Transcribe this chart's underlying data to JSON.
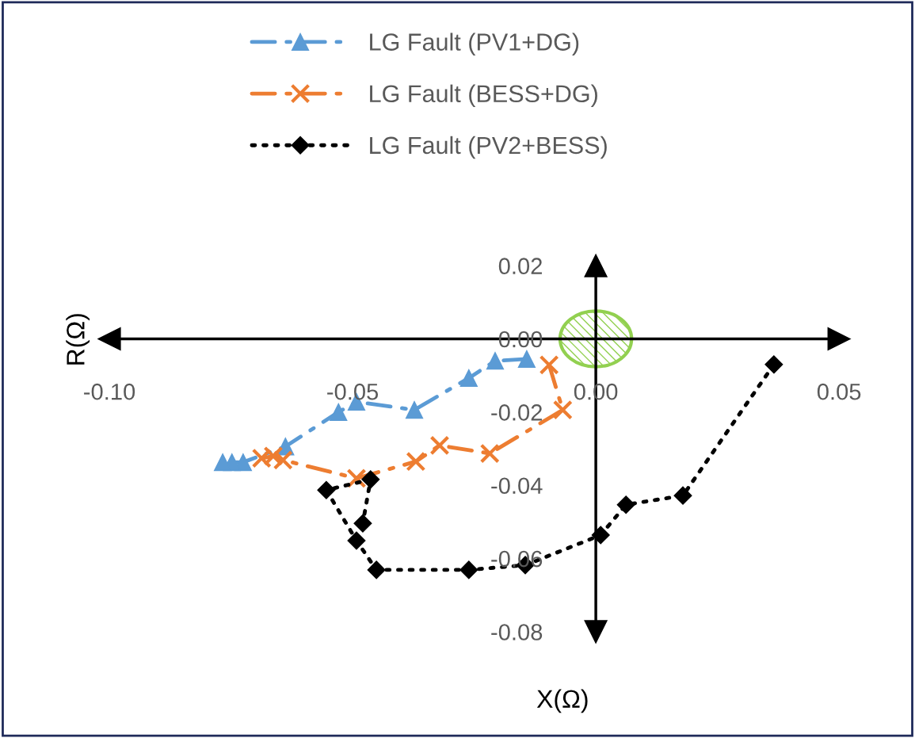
{
  "chart_data": {
    "type": "line",
    "xlabel": "X(Ω)",
    "ylabel": "R(Ω)",
    "xlim": [
      -0.1,
      0.05
    ],
    "xticks": [
      {
        "value": -0.1,
        "label": "-0.10"
      },
      {
        "value": -0.05,
        "label": "-0.05"
      },
      {
        "value": 0,
        "label": "0.00"
      },
      {
        "value": 0.05,
        "label": "0.05"
      }
    ],
    "ylim": [
      -0.08,
      0.02
    ],
    "yticks": [
      {
        "value": -0.08,
        "label": "-0.08"
      },
      {
        "value": -0.06,
        "label": "-0.06"
      },
      {
        "value": -0.04,
        "label": "-0.04"
      },
      {
        "value": -0.02,
        "label": "-0.02"
      },
      {
        "value": 0,
        "label": "0.00"
      },
      {
        "value": 0.02,
        "label": "0.02"
      }
    ],
    "grid": false,
    "legend": "top",
    "series": [
      {
        "name": "LG Fault (PV1+DG)",
        "color": "#5b9bd5",
        "marker": "triangle",
        "line_style": "dashed",
        "x": [
          -0.0142,
          -0.0207,
          -0.0261,
          -0.0373,
          -0.0492,
          -0.0529,
          -0.0638,
          -0.0725,
          -0.0748,
          -0.0767
        ],
        "values": [
          -0.0055,
          -0.006,
          -0.0107,
          -0.0194,
          -0.0172,
          -0.02,
          -0.0294,
          -0.0337,
          -0.0337,
          -0.0337
        ]
      },
      {
        "name": "LG Fault (BESS+DG)",
        "color": "#ed7d31",
        "marker": "cross",
        "line_style": "dashed",
        "x": [
          -0.0096,
          -0.0068,
          -0.0218,
          -0.0321,
          -0.037,
          -0.0492,
          -0.0643,
          -0.0663,
          -0.0687
        ],
        "values": [
          -0.0071,
          -0.0194,
          -0.0313,
          -0.0291,
          -0.0335,
          -0.0381,
          -0.0331,
          -0.032,
          -0.0326
        ]
      },
      {
        "name": "LG Fault (PV2+BESS)",
        "color": "#000000",
        "marker": "diamond",
        "line_style": "dotted",
        "x": [
          0.0366,
          0.0179,
          0.0062,
          0.001,
          -0.0145,
          -0.0261,
          -0.0451,
          -0.0492,
          -0.0554,
          -0.0463,
          -0.0479
        ],
        "values": [
          -0.007,
          -0.0428,
          -0.0453,
          -0.0536,
          -0.0618,
          -0.0631,
          -0.0631,
          -0.0551,
          -0.0413,
          -0.0384,
          -0.0504
        ]
      }
    ]
  }
}
